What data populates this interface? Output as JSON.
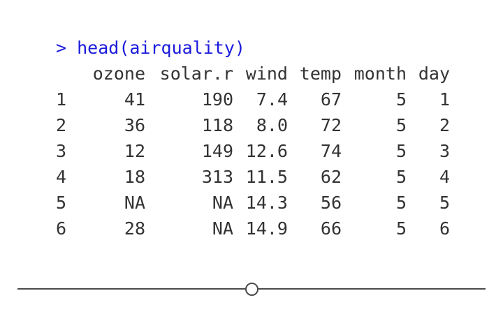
{
  "console": {
    "prompt": "> ",
    "command": "head(airquality)",
    "columns": [
      "ozone",
      "solar.r",
      "wind",
      "temp",
      "month",
      "day"
    ],
    "rows": [
      {
        "index": "1",
        "ozone": "41",
        "solar": "190",
        "wind": "7.4",
        "temp": "67",
        "month": "5",
        "day": "1"
      },
      {
        "index": "2",
        "ozone": "36",
        "solar": "118",
        "wind": "8.0",
        "temp": "72",
        "month": "5",
        "day": "2"
      },
      {
        "index": "3",
        "ozone": "12",
        "solar": "149",
        "wind": "12.6",
        "temp": "74",
        "month": "5",
        "day": "3"
      },
      {
        "index": "4",
        "ozone": "18",
        "solar": "313",
        "wind": "11.5",
        "temp": "62",
        "month": "5",
        "day": "4"
      },
      {
        "index": "5",
        "ozone": "NA",
        "solar": "NA",
        "wind": "14.3",
        "temp": "56",
        "month": "5",
        "day": "5"
      },
      {
        "index": "6",
        "ozone": "28",
        "solar": "NA",
        "wind": "14.9",
        "temp": "66",
        "month": "5",
        "day": "6"
      }
    ]
  },
  "slider": {
    "value": 0.5
  }
}
